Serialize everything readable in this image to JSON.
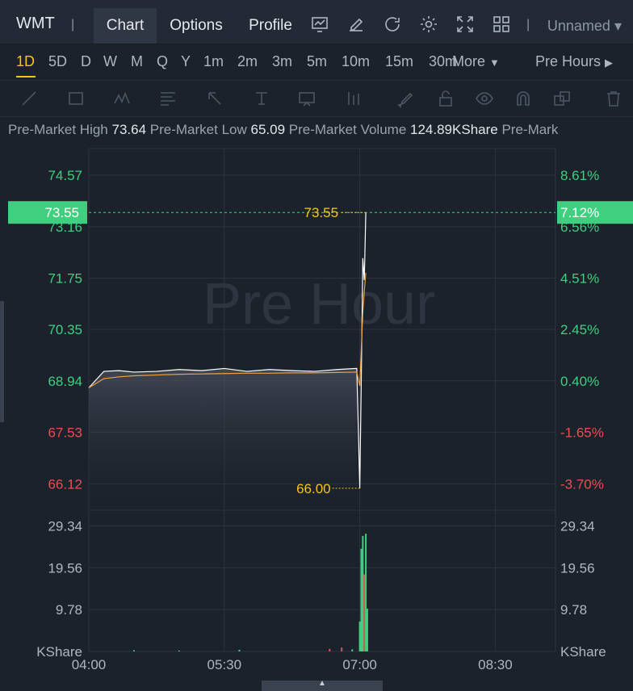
{
  "header": {
    "ticker": "WMT",
    "tabs": [
      {
        "label": "Chart",
        "active": true
      },
      {
        "label": "Options",
        "active": false
      },
      {
        "label": "Profile",
        "active": false
      }
    ],
    "icons": [
      "chart-indicator-icon",
      "pencil-icon",
      "refresh-icon",
      "gear-icon",
      "fullscreen-icon",
      "grid-layout-icon"
    ],
    "layout_name": "Unnamed"
  },
  "timeframes": {
    "items": [
      "1D",
      "5D",
      "D",
      "W",
      "M",
      "Q",
      "Y",
      "1m",
      "2m",
      "3m",
      "5m",
      "10m",
      "15m",
      "30m"
    ],
    "active": "1D",
    "more_label": "More",
    "session_label": "Pre Hours"
  },
  "drawing_tools": [
    "trendline-icon",
    "rectangle-icon",
    "pattern-icon",
    "fib-icon",
    "arrow-icon",
    "text-tool-icon",
    "label-icon",
    "bar-pattern-icon",
    "brush-icon",
    "lock-icon",
    "eye-icon",
    "magnet-icon",
    "layers-icon",
    "trash-icon"
  ],
  "stats": {
    "high_label": "Pre-Market High",
    "high_value": "73.64",
    "low_label": "Pre-Market Low",
    "low_value": "65.09",
    "volume_label": "Pre-Market Volume",
    "volume_value": "124.89KShare",
    "extra_label": "Pre-Mark"
  },
  "colors": {
    "up": "#3fcf7f",
    "down": "#e8504f",
    "marker": "#f5c518",
    "price_line": "#ffffff",
    "avg_line": "#f0a040",
    "current_tag_bg": "#3fcf7f"
  },
  "chart_data": {
    "type": "line",
    "watermark": "Pre Hour",
    "x_ticks": [
      "04:00",
      "05:30",
      "07:00",
      "08:30"
    ],
    "price_axis": {
      "left_ticks": [
        "74.57",
        "73.16",
        "71.75",
        "70.35",
        "68.94",
        "67.53",
        "66.12"
      ],
      "left_tick_values": [
        74.57,
        73.16,
        71.75,
        70.35,
        68.94,
        67.53,
        66.12
      ],
      "right_ticks": [
        "8.61%",
        "6.56%",
        "4.51%",
        "2.45%",
        "0.40%",
        "-1.65%",
        "-3.70%"
      ],
      "ylim": [
        65.4,
        75.3
      ]
    },
    "current_price": "73.55",
    "current_change": "7.12%",
    "high_marker": "73.55",
    "low_marker": "66.00",
    "price_series": {
      "x": [
        "04:00",
        "04:10",
        "04:20",
        "04:30",
        "04:45",
        "05:00",
        "05:15",
        "05:30",
        "05:45",
        "06:00",
        "06:15",
        "06:30",
        "06:45",
        "06:58",
        "07:00",
        "07:01",
        "07:02",
        "07:03",
        "07:04"
      ],
      "price": [
        68.75,
        69.2,
        69.22,
        69.18,
        69.2,
        69.25,
        69.22,
        69.28,
        69.2,
        69.25,
        69.22,
        69.2,
        69.25,
        69.28,
        66.0,
        69.0,
        72.3,
        71.7,
        73.55
      ],
      "average": [
        68.75,
        69.0,
        69.05,
        69.08,
        69.1,
        69.12,
        69.13,
        69.14,
        69.15,
        69.15,
        69.16,
        69.16,
        69.17,
        69.18,
        68.8,
        69.8,
        70.8,
        71.4,
        71.9
      ]
    },
    "volume_axis": {
      "ticks": [
        "29.34",
        "19.56",
        "9.78"
      ],
      "tick_values": [
        29.34,
        19.56,
        9.78
      ],
      "unit": "KShare",
      "ylim": [
        0,
        33
      ]
    },
    "volume_bars": [
      {
        "t": "04:30",
        "v": 0.3,
        "dir": "up"
      },
      {
        "t": "05:00",
        "v": 0.2,
        "dir": "up"
      },
      {
        "t": "05:40",
        "v": 0.4,
        "dir": "up"
      },
      {
        "t": "06:40",
        "v": 0.6,
        "dir": "down"
      },
      {
        "t": "06:48",
        "v": 0.9,
        "dir": "down"
      },
      {
        "t": "06:55",
        "v": 0.5,
        "dir": "up"
      },
      {
        "t": "07:00",
        "v": 7.0,
        "dir": "up"
      },
      {
        "t": "07:01",
        "v": 24.0,
        "dir": "up"
      },
      {
        "t": "07:02",
        "v": 27.0,
        "dir": "up"
      },
      {
        "t": "07:03",
        "v": 18.0,
        "dir": "down"
      },
      {
        "t": "07:04",
        "v": 27.5,
        "dir": "up"
      },
      {
        "t": "07:05",
        "v": 10.0,
        "dir": "up"
      }
    ]
  }
}
